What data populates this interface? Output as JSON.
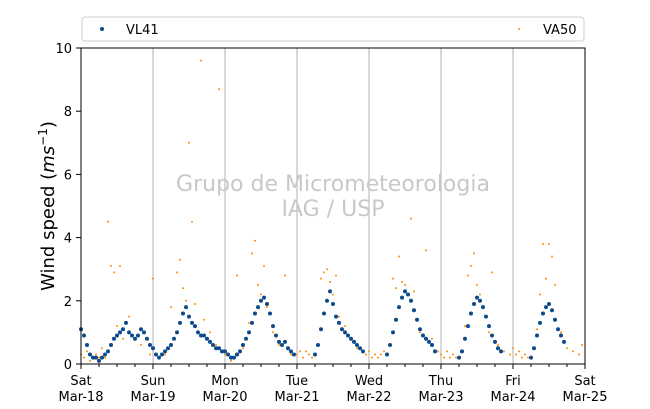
{
  "watermark": {
    "line1": "Grupo de Micrometeorologia",
    "line2": "IAG / USP"
  },
  "chart_data": {
    "type": "scatter",
    "xlabel": "",
    "ylabel_prefix": "Wind speed (",
    "ylabel_unit_base": "ms",
    "ylabel_unit_exp": "−1",
    "ylabel_suffix": ")",
    "ylim": [
      0,
      10
    ],
    "yticks": [
      0,
      2,
      4,
      6,
      8,
      10
    ],
    "xlim": [
      "2023-03-18T00:00",
      "2023-03-25T00:00"
    ],
    "xticks": [
      {
        "day": "Sat",
        "date": "Mar-18"
      },
      {
        "day": "Sun",
        "date": "Mar-19"
      },
      {
        "day": "Mon",
        "date": "Mar-20"
      },
      {
        "day": "Tue",
        "date": "Mar-21"
      },
      {
        "day": "Wed",
        "date": "Mar-22"
      },
      {
        "day": "Thu",
        "date": "Mar-23"
      },
      {
        "day": "Fri",
        "date": "Mar-24"
      },
      {
        "day": "Sat",
        "date": "Mar-25"
      }
    ],
    "grid": "vertical at day boundaries",
    "legend_position": "top",
    "series": [
      {
        "name": "VL41",
        "color": "#0b4a8b",
        "marker": "dot",
        "points": [
          [
            "2023-03-18T00:00",
            1.1
          ],
          [
            "2023-03-18T01:00",
            0.9
          ],
          [
            "2023-03-18T02:00",
            0.6
          ],
          [
            "2023-03-18T03:00",
            0.3
          ],
          [
            "2023-03-18T04:00",
            0.2
          ],
          [
            "2023-03-18T05:00",
            0.2
          ],
          [
            "2023-03-18T06:00",
            0.1
          ],
          [
            "2023-03-18T07:00",
            0.2
          ],
          [
            "2023-03-18T08:00",
            0.3
          ],
          [
            "2023-03-18T09:00",
            0.4
          ],
          [
            "2023-03-18T10:00",
            0.6
          ],
          [
            "2023-03-18T11:00",
            0.8
          ],
          [
            "2023-03-18T12:00",
            0.9
          ],
          [
            "2023-03-18T13:00",
            1.0
          ],
          [
            "2023-03-18T14:00",
            1.1
          ],
          [
            "2023-03-18T15:00",
            1.3
          ],
          [
            "2023-03-18T16:00",
            1.0
          ],
          [
            "2023-03-18T17:00",
            0.9
          ],
          [
            "2023-03-18T18:00",
            0.8
          ],
          [
            "2023-03-18T19:00",
            0.9
          ],
          [
            "2023-03-18T20:00",
            1.1
          ],
          [
            "2023-03-18T21:00",
            1.0
          ],
          [
            "2023-03-18T22:00",
            0.8
          ],
          [
            "2023-03-18T23:00",
            0.6
          ],
          [
            "2023-03-19T00:00",
            0.5
          ],
          [
            "2023-03-19T01:00",
            0.3
          ],
          [
            "2023-03-19T02:00",
            0.2
          ],
          [
            "2023-03-19T03:00",
            0.3
          ],
          [
            "2023-03-19T04:00",
            0.4
          ],
          [
            "2023-03-19T05:00",
            0.5
          ],
          [
            "2023-03-19T06:00",
            0.6
          ],
          [
            "2023-03-19T07:00",
            0.8
          ],
          [
            "2023-03-19T08:00",
            1.0
          ],
          [
            "2023-03-19T09:00",
            1.3
          ],
          [
            "2023-03-19T10:00",
            1.6
          ],
          [
            "2023-03-19T11:00",
            1.8
          ],
          [
            "2023-03-19T12:00",
            1.5
          ],
          [
            "2023-03-19T13:00",
            1.3
          ],
          [
            "2023-03-19T14:00",
            1.2
          ],
          [
            "2023-03-19T15:00",
            1.0
          ],
          [
            "2023-03-19T16:00",
            0.9
          ],
          [
            "2023-03-19T17:00",
            0.9
          ],
          [
            "2023-03-19T18:00",
            0.8
          ],
          [
            "2023-03-19T19:00",
            0.7
          ],
          [
            "2023-03-19T20:00",
            0.6
          ],
          [
            "2023-03-19T21:00",
            0.5
          ],
          [
            "2023-03-19T22:00",
            0.5
          ],
          [
            "2023-03-19T23:00",
            0.4
          ],
          [
            "2023-03-20T00:00",
            0.4
          ],
          [
            "2023-03-20T01:00",
            0.3
          ],
          [
            "2023-03-20T02:00",
            0.2
          ],
          [
            "2023-03-20T03:00",
            0.2
          ],
          [
            "2023-03-20T04:00",
            0.3
          ],
          [
            "2023-03-20T05:00",
            0.4
          ],
          [
            "2023-03-20T06:00",
            0.6
          ],
          [
            "2023-03-20T07:00",
            0.8
          ],
          [
            "2023-03-20T08:00",
            1.0
          ],
          [
            "2023-03-20T09:00",
            1.3
          ],
          [
            "2023-03-20T10:00",
            1.6
          ],
          [
            "2023-03-20T11:00",
            1.8
          ],
          [
            "2023-03-20T12:00",
            2.0
          ],
          [
            "2023-03-20T13:00",
            2.1
          ],
          [
            "2023-03-20T14:00",
            1.9
          ],
          [
            "2023-03-20T15:00",
            1.6
          ],
          [
            "2023-03-20T16:00",
            1.2
          ],
          [
            "2023-03-20T17:00",
            0.9
          ],
          [
            "2023-03-20T18:00",
            0.7
          ],
          [
            "2023-03-20T19:00",
            0.6
          ],
          [
            "2023-03-20T20:00",
            0.7
          ],
          [
            "2023-03-20T21:00",
            0.5
          ],
          [
            "2023-03-20T22:00",
            0.4
          ],
          [
            "2023-03-20T23:00",
            0.3
          ],
          [
            "2023-03-21T06:00",
            0.3
          ],
          [
            "2023-03-21T07:00",
            0.6
          ],
          [
            "2023-03-21T08:00",
            1.1
          ],
          [
            "2023-03-21T09:00",
            1.6
          ],
          [
            "2023-03-21T10:00",
            2.0
          ],
          [
            "2023-03-21T11:00",
            2.3
          ],
          [
            "2023-03-21T12:00",
            1.9
          ],
          [
            "2023-03-21T13:00",
            1.5
          ],
          [
            "2023-03-21T14:00",
            1.3
          ],
          [
            "2023-03-21T15:00",
            1.1
          ],
          [
            "2023-03-21T16:00",
            1.0
          ],
          [
            "2023-03-21T17:00",
            0.9
          ],
          [
            "2023-03-21T18:00",
            0.8
          ],
          [
            "2023-03-21T19:00",
            0.7
          ],
          [
            "2023-03-21T20:00",
            0.6
          ],
          [
            "2023-03-21T21:00",
            0.5
          ],
          [
            "2023-03-21T22:00",
            0.4
          ],
          [
            "2023-03-22T06:00",
            0.3
          ],
          [
            "2023-03-22T07:00",
            0.6
          ],
          [
            "2023-03-22T08:00",
            1.0
          ],
          [
            "2023-03-22T09:00",
            1.4
          ],
          [
            "2023-03-22T10:00",
            1.8
          ],
          [
            "2023-03-22T11:00",
            2.1
          ],
          [
            "2023-03-22T12:00",
            2.3
          ],
          [
            "2023-03-22T13:00",
            2.2
          ],
          [
            "2023-03-22T14:00",
            2.0
          ],
          [
            "2023-03-22T15:00",
            1.7
          ],
          [
            "2023-03-22T16:00",
            1.4
          ],
          [
            "2023-03-22T17:00",
            1.1
          ],
          [
            "2023-03-22T18:00",
            0.9
          ],
          [
            "2023-03-22T19:00",
            0.8
          ],
          [
            "2023-03-22T20:00",
            0.7
          ],
          [
            "2023-03-22T21:00",
            0.6
          ],
          [
            "2023-03-22T22:00",
            0.4
          ],
          [
            "2023-03-23T06:00",
            0.2
          ],
          [
            "2023-03-23T07:00",
            0.4
          ],
          [
            "2023-03-23T08:00",
            0.8
          ],
          [
            "2023-03-23T09:00",
            1.2
          ],
          [
            "2023-03-23T10:00",
            1.6
          ],
          [
            "2023-03-23T11:00",
            1.9
          ],
          [
            "2023-03-23T12:00",
            2.1
          ],
          [
            "2023-03-23T13:00",
            2.0
          ],
          [
            "2023-03-23T14:00",
            1.8
          ],
          [
            "2023-03-23T15:00",
            1.5
          ],
          [
            "2023-03-23T16:00",
            1.2
          ],
          [
            "2023-03-23T17:00",
            0.9
          ],
          [
            "2023-03-23T18:00",
            0.7
          ],
          [
            "2023-03-23T19:00",
            0.5
          ],
          [
            "2023-03-23T20:00",
            0.4
          ],
          [
            "2023-03-24T06:00",
            0.2
          ],
          [
            "2023-03-24T07:00",
            0.5
          ],
          [
            "2023-03-24T08:00",
            0.9
          ],
          [
            "2023-03-24T09:00",
            1.3
          ],
          [
            "2023-03-24T10:00",
            1.6
          ],
          [
            "2023-03-24T11:00",
            1.8
          ],
          [
            "2023-03-24T12:00",
            1.9
          ],
          [
            "2023-03-24T13:00",
            1.7
          ],
          [
            "2023-03-24T14:00",
            1.4
          ],
          [
            "2023-03-24T15:00",
            1.1
          ],
          [
            "2023-03-24T16:00",
            0.9
          ],
          [
            "2023-03-24T17:00",
            0.7
          ]
        ]
      },
      {
        "name": "VA50",
        "color": "#ff8c00",
        "marker": "point",
        "points": [
          [
            "2023-03-18T00:00",
            0.3
          ],
          [
            "2023-03-18T01:00",
            0.2
          ],
          [
            "2023-03-18T02:00",
            0.4
          ],
          [
            "2023-03-18T03:00",
            0.1
          ],
          [
            "2023-03-18T04:00",
            0.2
          ],
          [
            "2023-03-18T05:00",
            0.3
          ],
          [
            "2023-03-18T06:00",
            0.2
          ],
          [
            "2023-03-18T07:00",
            0.5
          ],
          [
            "2023-03-18T08:00",
            0.2
          ],
          [
            "2023-03-18T09:00",
            4.5
          ],
          [
            "2023-03-18T10:00",
            3.1
          ],
          [
            "2023-03-18T11:00",
            2.9
          ],
          [
            "2023-03-18T12:00",
            1.2
          ],
          [
            "2023-03-18T13:00",
            3.1
          ],
          [
            "2023-03-18T14:00",
            0.8
          ],
          [
            "2023-03-18T16:00",
            1.5
          ],
          [
            "2023-03-18T20:00",
            0.6
          ],
          [
            "2023-03-18T23:00",
            0.3
          ],
          [
            "2023-03-19T00:00",
            2.7
          ],
          [
            "2023-03-19T02:00",
            0.2
          ],
          [
            "2023-03-19T04:00",
            0.3
          ],
          [
            "2023-03-19T06:00",
            1.8
          ],
          [
            "2023-03-19T08:00",
            2.9
          ],
          [
            "2023-03-19T09:00",
            3.3
          ],
          [
            "2023-03-19T10:00",
            2.4
          ],
          [
            "2023-03-19T11:00",
            2.0
          ],
          [
            "2023-03-19T12:00",
            7.0
          ],
          [
            "2023-03-19T13:00",
            4.5
          ],
          [
            "2023-03-19T14:00",
            1.9
          ],
          [
            "2023-03-19T16:00",
            9.6
          ],
          [
            "2023-03-19T17:00",
            1.4
          ],
          [
            "2023-03-19T19:00",
            1.0
          ],
          [
            "2023-03-19T21:00",
            0.6
          ],
          [
            "2023-03-19T22:00",
            8.7
          ],
          [
            "2023-03-19T23:00",
            0.4
          ],
          [
            "2023-03-20T00:00",
            0.3
          ],
          [
            "2023-03-20T02:00",
            0.1
          ],
          [
            "2023-03-20T04:00",
            2.8
          ],
          [
            "2023-03-20T06:00",
            0.5
          ],
          [
            "2023-03-20T08:00",
            1.3
          ],
          [
            "2023-03-20T09:00",
            3.5
          ],
          [
            "2023-03-20T10:00",
            3.9
          ],
          [
            "2023-03-20T11:00",
            2.5
          ],
          [
            "2023-03-20T12:00",
            2.2
          ],
          [
            "2023-03-20T13:00",
            3.1
          ],
          [
            "2023-03-20T14:00",
            1.8
          ],
          [
            "2023-03-20T16:00",
            1.0
          ],
          [
            "2023-03-20T18:00",
            0.6
          ],
          [
            "2023-03-20T20:00",
            2.8
          ],
          [
            "2023-03-20T22:00",
            0.3
          ],
          [
            "2023-03-21T00:00",
            0.3
          ],
          [
            "2023-03-21T01:00",
            0.4
          ],
          [
            "2023-03-21T02:00",
            0.2
          ],
          [
            "2023-03-21T03:00",
            0.4
          ],
          [
            "2023-03-21T04:00",
            0.3
          ],
          [
            "2023-03-21T05:00",
            0.2
          ],
          [
            "2023-03-21T08:00",
            2.7
          ],
          [
            "2023-03-21T09:00",
            2.9
          ],
          [
            "2023-03-21T10:00",
            3.0
          ],
          [
            "2023-03-21T11:00",
            2.6
          ],
          [
            "2023-03-21T12:00",
            2.2
          ],
          [
            "2023-03-21T13:00",
            2.8
          ],
          [
            "2023-03-21T14:00",
            1.5
          ],
          [
            "2023-03-21T16:00",
            1.2
          ],
          [
            "2023-03-21T18:00",
            0.8
          ],
          [
            "2023-03-21T20:00",
            0.5
          ],
          [
            "2023-03-21T23:00",
            0.3
          ],
          [
            "2023-03-22T00:00",
            0.4
          ],
          [
            "2023-03-22T01:00",
            0.2
          ],
          [
            "2023-03-22T02:00",
            0.3
          ],
          [
            "2023-03-22T03:00",
            0.2
          ],
          [
            "2023-03-22T04:00",
            0.3
          ],
          [
            "2023-03-22T05:00",
            0.4
          ],
          [
            "2023-03-22T08:00",
            2.7
          ],
          [
            "2023-03-22T09:00",
            2.4
          ],
          [
            "2023-03-22T10:00",
            3.4
          ],
          [
            "2023-03-22T11:00",
            2.6
          ],
          [
            "2023-03-22T12:00",
            2.5
          ],
          [
            "2023-03-22T14:00",
            4.6
          ],
          [
            "2023-03-22T15:00",
            2.3
          ],
          [
            "2023-03-22T17:00",
            1.0
          ],
          [
            "2023-03-22T19:00",
            3.6
          ],
          [
            "2023-03-22T21:00",
            0.8
          ],
          [
            "2023-03-22T23:00",
            0.4
          ],
          [
            "2023-03-23T00:00",
            0.3
          ],
          [
            "2023-03-23T01:00",
            0.2
          ],
          [
            "2023-03-23T02:00",
            0.4
          ],
          [
            "2023-03-23T03:00",
            0.2
          ],
          [
            "2023-03-23T04:00",
            0.3
          ],
          [
            "2023-03-23T05:00",
            0.2
          ],
          [
            "2023-03-23T08:00",
            1.2
          ],
          [
            "2023-03-23T09:00",
            2.8
          ],
          [
            "2023-03-23T10:00",
            3.1
          ],
          [
            "2023-03-23T11:00",
            3.5
          ],
          [
            "2023-03-23T12:00",
            2.5
          ],
          [
            "2023-03-23T13:00",
            2.2
          ],
          [
            "2023-03-23T14:00",
            1.8
          ],
          [
            "2023-03-23T16:00",
            1.0
          ],
          [
            "2023-03-23T17:00",
            2.9
          ],
          [
            "2023-03-23T19:00",
            0.6
          ],
          [
            "2023-03-23T21:00",
            0.4
          ],
          [
            "2023-03-23T23:00",
            0.3
          ],
          [
            "2023-03-24T00:00",
            0.5
          ],
          [
            "2023-03-24T01:00",
            0.3
          ],
          [
            "2023-03-24T02:00",
            0.4
          ],
          [
            "2023-03-24T03:00",
            0.2
          ],
          [
            "2023-03-24T04:00",
            0.3
          ],
          [
            "2023-03-24T05:00",
            0.2
          ],
          [
            "2023-03-24T08:00",
            1.1
          ],
          [
            "2023-03-24T09:00",
            2.2
          ],
          [
            "2023-03-24T10:00",
            3.8
          ],
          [
            "2023-03-24T11:00",
            2.7
          ],
          [
            "2023-03-24T12:00",
            3.8
          ],
          [
            "2023-03-24T13:00",
            3.4
          ],
          [
            "2023-03-24T14:00",
            2.5
          ],
          [
            "2023-03-24T16:00",
            1.0
          ],
          [
            "2023-03-24T18:00",
            0.5
          ],
          [
            "2023-03-24T20:00",
            0.4
          ],
          [
            "2023-03-24T22:00",
            0.3
          ],
          [
            "2023-03-24T23:00",
            0.6
          ]
        ]
      }
    ]
  }
}
